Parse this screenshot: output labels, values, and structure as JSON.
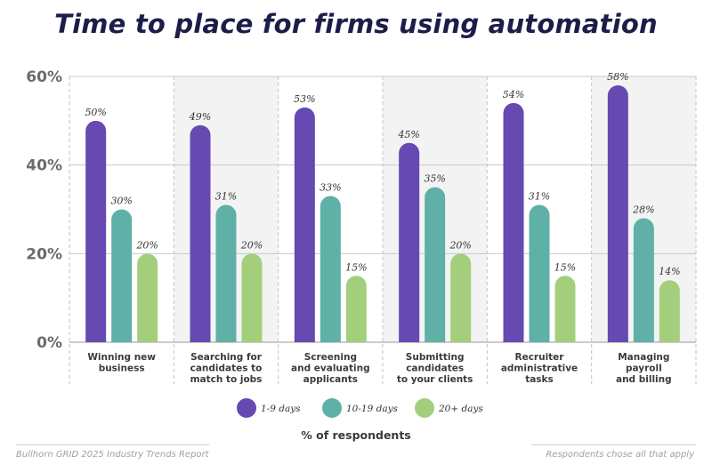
{
  "chart_data": {
    "type": "bar",
    "title": "Time to place for firms using automation",
    "xlabel": "% of respondents",
    "ylabel": "",
    "ylim": [
      0,
      60
    ],
    "yticks": [
      "0%",
      "20%",
      "40%",
      "60%"
    ],
    "grid": true,
    "legend_position": "bottom",
    "categories": [
      [
        "Winning new",
        "business"
      ],
      [
        "Searching for",
        "candidates to",
        "match to jobs"
      ],
      [
        "Screening",
        "and evaluating",
        "applicants"
      ],
      [
        "Submitting",
        "candidates",
        "to your clients"
      ],
      [
        "Recruiter",
        "administrative",
        "tasks"
      ],
      [
        "Managing",
        "payroll",
        "and billing"
      ]
    ],
    "series": [
      {
        "name": "1-9 days",
        "color": "#6649b1",
        "values": [
          50,
          49,
          53,
          45,
          54,
          58
        ],
        "labels": [
          "50%",
          "49%",
          "53%",
          "45%",
          "54%",
          "58%"
        ]
      },
      {
        "name": "10-19 days",
        "color": "#5fb0a7",
        "values": [
          30,
          31,
          33,
          35,
          31,
          28
        ],
        "labels": [
          "30%",
          "31%",
          "33%",
          "35%",
          "31%",
          "28%"
        ]
      },
      {
        "name": "20+ days",
        "color": "#a3cf7d",
        "values": [
          20,
          20,
          15,
          20,
          15,
          14
        ],
        "labels": [
          "20%",
          "20%",
          "15%",
          "20%",
          "15%",
          "14%"
        ]
      }
    ]
  },
  "footer": {
    "source": "Bullhorn GRID 2025 Industry Trends Report",
    "note": "Respondents chose all that apply"
  }
}
